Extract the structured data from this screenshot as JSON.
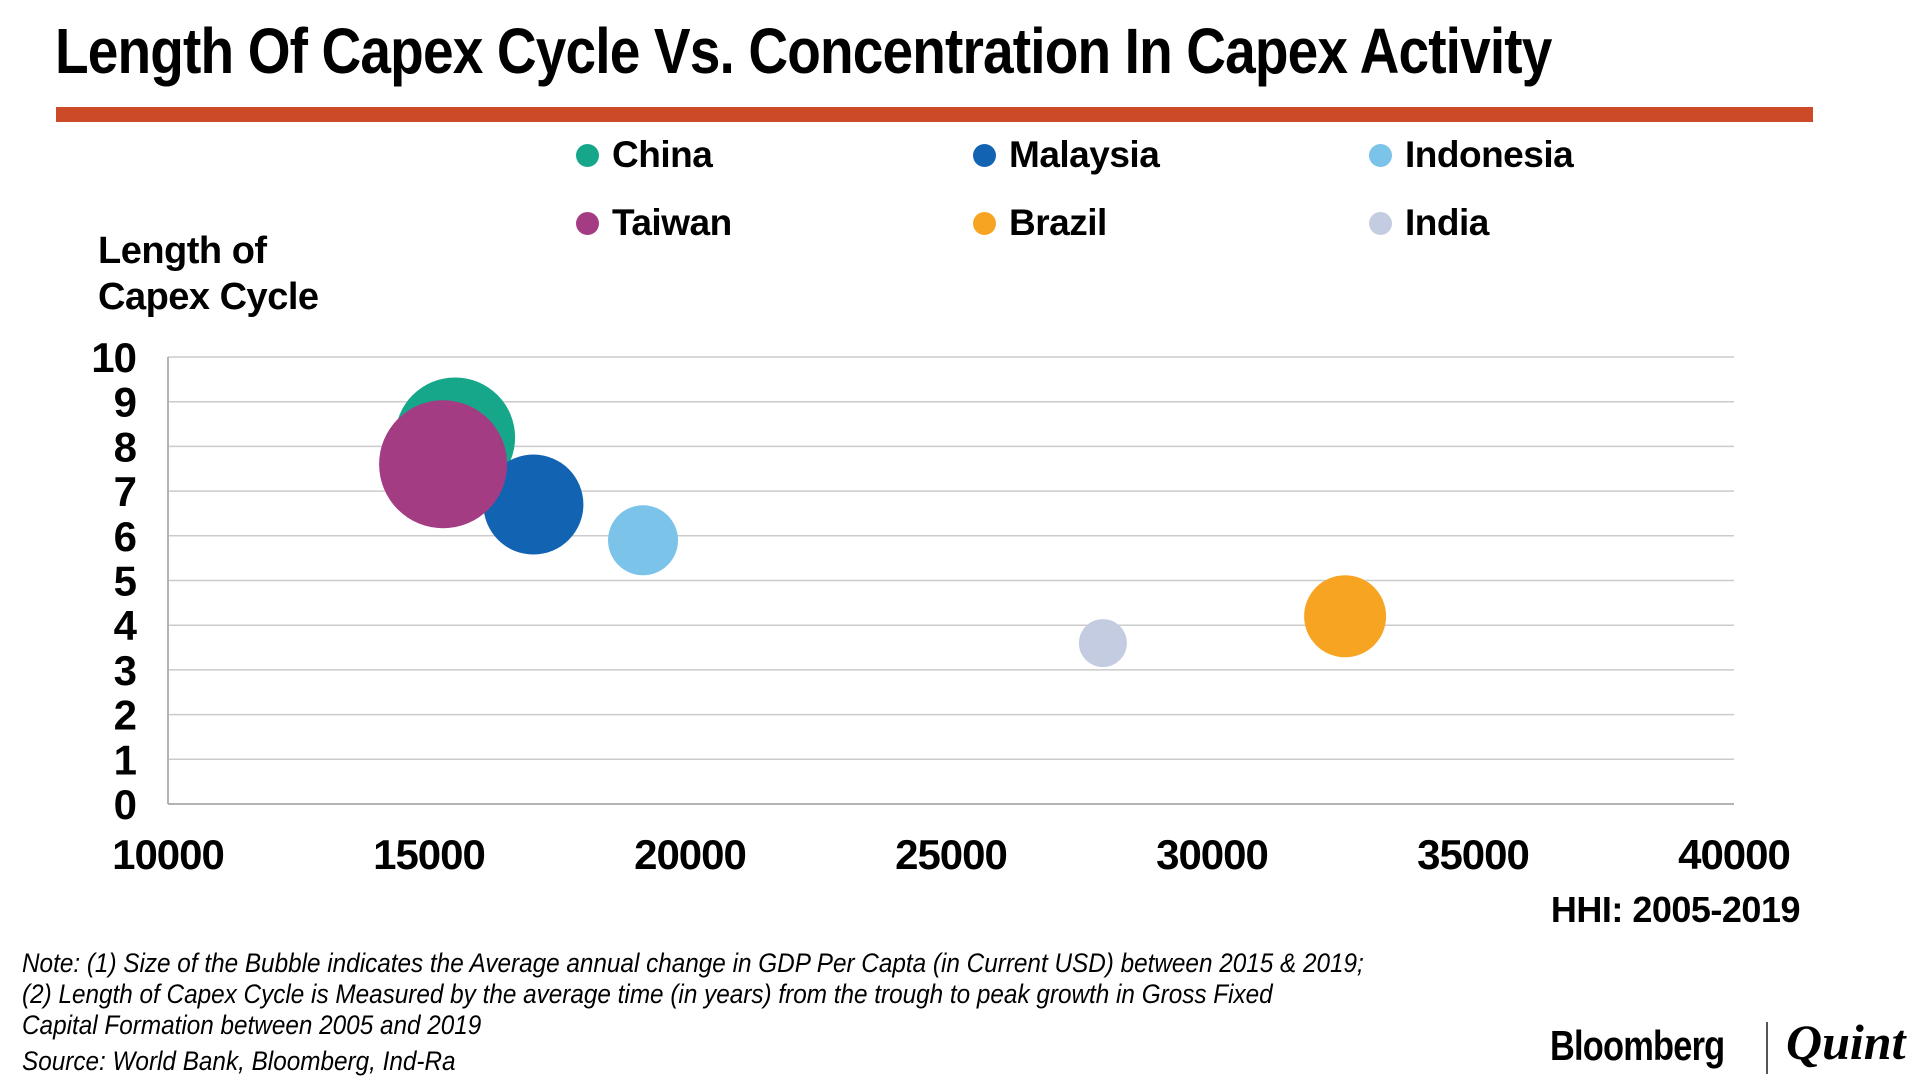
{
  "header": {
    "title": "Length Of Capex Cycle Vs. Concentration In Capex Activity",
    "accent_color": "#CC4A28"
  },
  "chart": {
    "y_axis_title_line1": "Length of",
    "y_axis_title_line2": "Capex Cycle",
    "x_axis_label": "HHI: 2005-2019"
  },
  "chart_data": {
    "type": "scatter",
    "subtype": "bubble",
    "title": "Length Of Capex Cycle Vs. Concentration In Capex Activity",
    "xlabel": "HHI: 2005-2019",
    "ylabel": "Length of Capex Cycle",
    "xlim": [
      10000,
      40000
    ],
    "ylim": [
      0,
      10
    ],
    "x_ticks": [
      10000,
      15000,
      20000,
      25000,
      30000,
      35000,
      40000
    ],
    "y_ticks": [
      0,
      1,
      2,
      3,
      4,
      5,
      6,
      7,
      8,
      9,
      10
    ],
    "grid": "horizontal",
    "grid_color": "#cbcbcb",
    "axis_color": "#b3b3b3",
    "legend_position": "top",
    "bubble_size_meaning": "Average annual change in GDP Per Capta (in Current USD) between 2015 & 2019",
    "series": [
      {
        "name": "China",
        "color": "#16A78B",
        "x": 15500,
        "y": 8.2,
        "radius_px": 60
      },
      {
        "name": "Malaysia",
        "color": "#1264B2",
        "x": 17000,
        "y": 6.7,
        "radius_px": 50
      },
      {
        "name": "Indonesia",
        "color": "#7CC3EA",
        "x": 19100,
        "y": 5.9,
        "radius_px": 35
      },
      {
        "name": "Taiwan",
        "color": "#A43C84",
        "x": 15270,
        "y": 7.6,
        "radius_px": 64
      },
      {
        "name": "Brazil",
        "color": "#F8A423",
        "x": 32550,
        "y": 4.2,
        "radius_px": 41
      },
      {
        "name": "India",
        "color": "#C4CCE1",
        "x": 27910,
        "y": 3.6,
        "radius_px": 24
      }
    ]
  },
  "footer": {
    "note1": "Note: (1) Size of the Bubble indicates the Average annual change in GDP Per Capta (in Current USD) between 2015 & 2019;",
    "note2": "(2) Length of Capex Cycle is Measured by the average time (in years) from the trough to peak growth in Gross Fixed",
    "note3": "Capital Formation between 2005 and 2019",
    "source": "Source: World Bank, Bloomberg, Ind-Ra",
    "logo_left": "Bloomberg",
    "logo_right": "Quint"
  }
}
